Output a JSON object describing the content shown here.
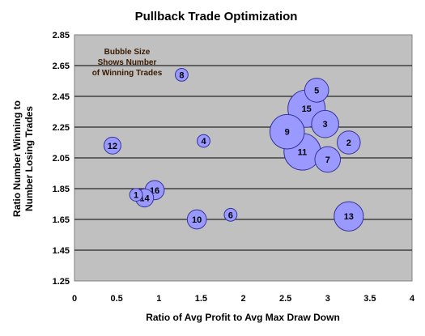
{
  "chart_data": {
    "type": "scatter",
    "subtype": "bubble",
    "title": "Pullback Trade Optimization",
    "xlabel": "Ratio of Avg Profit to Avg Max Draw Down",
    "ylabel_lines": [
      "Ratio Number Winning to",
      "Number Losing Trades"
    ],
    "xlim": [
      0,
      4
    ],
    "ylim": [
      1.25,
      2.85
    ],
    "xticks": [
      0,
      0.5,
      1,
      1.5,
      2,
      2.5,
      3,
      3.5,
      4
    ],
    "xtick_labels": [
      "0",
      "0.5",
      "1",
      "1.5",
      "2",
      "2.5",
      "3",
      "3.5",
      "4"
    ],
    "yticks": [
      1.25,
      1.45,
      1.65,
      1.85,
      2.05,
      2.25,
      2.45,
      2.65,
      2.85
    ],
    "ytick_labels": [
      "1.25",
      "1.45",
      "1.65",
      "1.85",
      "2.05",
      "2.25",
      "2.45",
      "2.65",
      "2.85"
    ],
    "grid": "horizontal",
    "plot_background": "#c0c0c0",
    "bubble_color": "#9999ff",
    "bubble_stroke": "#333399",
    "annotation_lines": [
      "Bubble Size",
      "Shows Number",
      "of Winning Trades"
    ],
    "bubbles": [
      {
        "label": "1",
        "x": 0.73,
        "y": 1.81,
        "size": 0.4
      },
      {
        "label": "14",
        "x": 0.83,
        "y": 1.79,
        "size": 0.8
      },
      {
        "label": "16",
        "x": 0.95,
        "y": 1.84,
        "size": 0.9
      },
      {
        "label": "12",
        "x": 0.45,
        "y": 2.13,
        "size": 0.7
      },
      {
        "label": "8",
        "x": 1.27,
        "y": 2.59,
        "size": 0.4
      },
      {
        "label": "4",
        "x": 1.53,
        "y": 2.16,
        "size": 0.4
      },
      {
        "label": "10",
        "x": 1.45,
        "y": 1.65,
        "size": 0.9
      },
      {
        "label": "6",
        "x": 1.85,
        "y": 1.68,
        "size": 0.4
      },
      {
        "label": "5",
        "x": 2.87,
        "y": 2.49,
        "size": 1.4
      },
      {
        "label": "15",
        "x": 2.75,
        "y": 2.37,
        "size": 3.4
      },
      {
        "label": "3",
        "x": 2.97,
        "y": 2.27,
        "size": 1.8
      },
      {
        "label": "9",
        "x": 2.52,
        "y": 2.22,
        "size": 2.9
      },
      {
        "label": "2",
        "x": 3.25,
        "y": 2.15,
        "size": 1.3
      },
      {
        "label": "11",
        "x": 2.7,
        "y": 2.09,
        "size": 3.3
      },
      {
        "label": "7",
        "x": 3.0,
        "y": 2.04,
        "size": 1.6
      },
      {
        "label": "13",
        "x": 3.25,
        "y": 1.67,
        "size": 2.1
      }
    ]
  }
}
